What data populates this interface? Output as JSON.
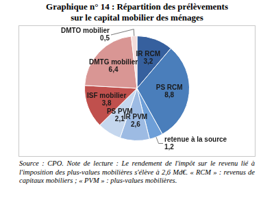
{
  "chart_data": {
    "type": "pie",
    "title": [
      "Graphique n° 14 : Répartition des prélèvements",
      "sur le capital mobilier des ménages"
    ],
    "categories": [
      "IR RCM",
      "PS RCM",
      "retenue à la source",
      "IR PVM",
      "PS PVM",
      "ISF mobilier",
      "DMTG mobilier",
      "DMTO mobilier"
    ],
    "values": [
      3.2,
      8.8,
      1.2,
      2.6,
      2.1,
      3.8,
      6.4,
      0.5
    ],
    "value_labels": [
      "3,2",
      "8,8",
      "1,2",
      "2,6",
      "2,1",
      "3,8",
      "6,4",
      "0,5"
    ],
    "colors": [
      "#36609e",
      "#4a7ebb",
      "#6e9fd8",
      "#9dbbe3",
      "#c5d7ee",
      "#c0504d",
      "#d99694",
      "#f2dcdb"
    ],
    "data_labels": true,
    "note": "Source : CPO. Note de lecture : Le rendement de l'impôt sur le revenu lié à l'imposition des plus-values mobilières s'élève à 2,6 Md€. « RCM » : revenus de capitaux mobiliers ; « PVM » : plus-values mobilières."
  }
}
